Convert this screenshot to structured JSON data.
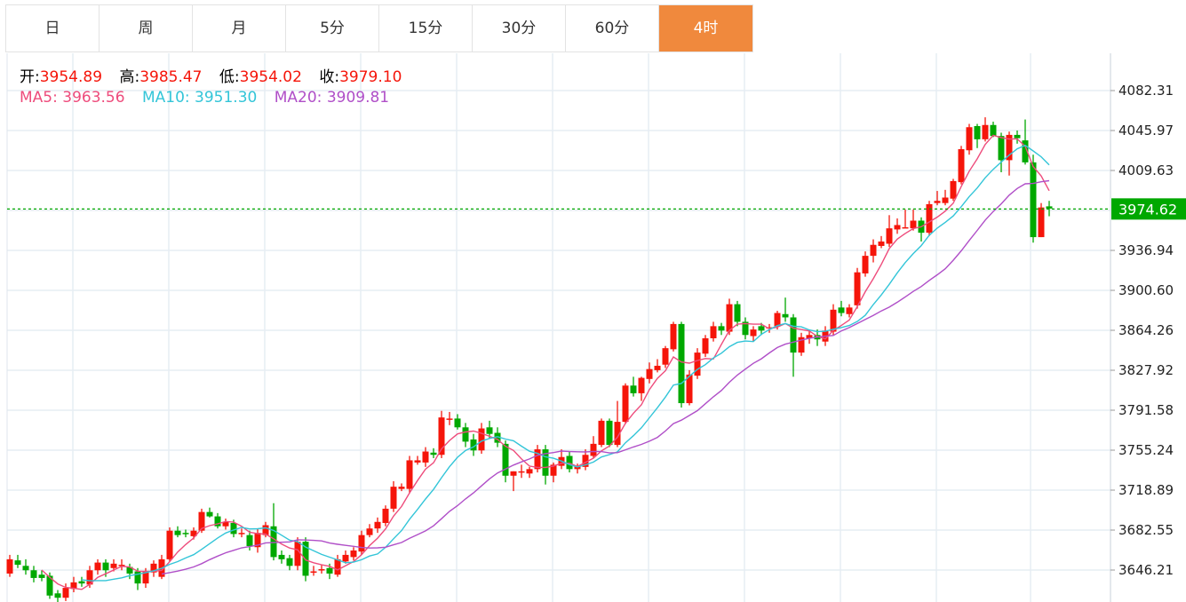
{
  "tabs": [
    {
      "label": "日"
    },
    {
      "label": "周"
    },
    {
      "label": "月"
    },
    {
      "label": "5分"
    },
    {
      "label": "15分"
    },
    {
      "label": "30分"
    },
    {
      "label": "60分"
    },
    {
      "label": "4时",
      "active": true
    }
  ],
  "info": {
    "open_label": "开:",
    "open": "3954.89",
    "high_label": "高:",
    "high": "3985.47",
    "low_label": "低:",
    "low": "3954.02",
    "close_label": "收:",
    "close": "3979.10",
    "ma5_label": "MA5:",
    "ma5": "3963.56",
    "ma10_label": "MA10:",
    "ma10": "3951.30",
    "ma20_label": "MA20:",
    "ma20": "3909.81"
  },
  "colors": {
    "up": "#f5150a",
    "down": "#00a800",
    "ma5": "#ee4c7c",
    "ma10": "#33c5d8",
    "ma20": "#b04fc8",
    "active_tab": "#f0893d",
    "current_price": "#00a800"
  },
  "chart_data": {
    "type": "candlestick",
    "yticks": [
      "4082.31",
      "4045.97",
      "4009.63",
      "3936.94",
      "3900.60",
      "3864.26",
      "3827.92",
      "3791.58",
      "3755.24",
      "3718.89",
      "3682.55",
      "3646.21"
    ],
    "ylim": [
      3620,
      4090
    ],
    "current_price": "3974.62",
    "grid": true,
    "ma_periods": [
      5,
      10,
      20
    ],
    "ohlc": [
      [
        3643,
        3660,
        3640,
        3656
      ],
      [
        3655,
        3660,
        3648,
        3651
      ],
      [
        3650,
        3656,
        3642,
        3646
      ],
      [
        3646,
        3650,
        3635,
        3639
      ],
      [
        3642,
        3646,
        3636,
        3639
      ],
      [
        3641,
        3644,
        3620,
        3623
      ],
      [
        3625,
        3628,
        3614,
        3621
      ],
      [
        3621,
        3634,
        3618,
        3630
      ],
      [
        3629,
        3640,
        3626,
        3635
      ],
      [
        3636,
        3640,
        3631,
        3634
      ],
      [
        3633,
        3650,
        3630,
        3646
      ],
      [
        3646,
        3656,
        3642,
        3653
      ],
      [
        3653,
        3656,
        3640,
        3646
      ],
      [
        3648,
        3656,
        3645,
        3652
      ],
      [
        3650,
        3656,
        3646,
        3651
      ],
      [
        3649,
        3652,
        3638,
        3643
      ],
      [
        3645,
        3648,
        3628,
        3634
      ],
      [
        3634,
        3648,
        3630,
        3645
      ],
      [
        3644,
        3655,
        3640,
        3652
      ],
      [
        3640,
        3660,
        3638,
        3656
      ],
      [
        3656,
        3685,
        3654,
        3682
      ],
      [
        3682,
        3686,
        3676,
        3678
      ],
      [
        3680,
        3683,
        3676,
        3679
      ],
      [
        3677,
        3685,
        3674,
        3682
      ],
      [
        3682,
        3702,
        3680,
        3699
      ],
      [
        3699,
        3703,
        3694,
        3695
      ],
      [
        3695,
        3698,
        3684,
        3686
      ],
      [
        3686,
        3693,
        3683,
        3690
      ],
      [
        3689,
        3692,
        3676,
        3679
      ],
      [
        3680,
        3684,
        3676,
        3680
      ],
      [
        3678,
        3682,
        3664,
        3668
      ],
      [
        3667,
        3684,
        3662,
        3680
      ],
      [
        3678,
        3690,
        3676,
        3687
      ],
      [
        3686,
        3707,
        3655,
        3658
      ],
      [
        3660,
        3664,
        3652,
        3656
      ],
      [
        3657,
        3660,
        3646,
        3650
      ],
      [
        3650,
        3676,
        3646,
        3672
      ],
      [
        3672,
        3676,
        3636,
        3641
      ],
      [
        3645,
        3650,
        3641,
        3645
      ],
      [
        3647,
        3651,
        3643,
        3647
      ],
      [
        3648,
        3652,
        3638,
        3643
      ],
      [
        3642,
        3660,
        3640,
        3656
      ],
      [
        3654,
        3664,
        3652,
        3660
      ],
      [
        3658,
        3667,
        3655,
        3664
      ],
      [
        3663,
        3682,
        3660,
        3678
      ],
      [
        3678,
        3688,
        3676,
        3684
      ],
      [
        3684,
        3694,
        3680,
        3690
      ],
      [
        3689,
        3705,
        3686,
        3702
      ],
      [
        3702,
        3727,
        3699,
        3722
      ],
      [
        3720,
        3725,
        3718,
        3722
      ],
      [
        3720,
        3750,
        3716,
        3746
      ],
      [
        3744,
        3750,
        3742,
        3746
      ],
      [
        3744,
        3758,
        3740,
        3754
      ],
      [
        3753,
        3757,
        3748,
        3751
      ],
      [
        3751,
        3791,
        3748,
        3785
      ],
      [
        3784,
        3790,
        3778,
        3784
      ],
      [
        3784,
        3788,
        3774,
        3776
      ],
      [
        3776,
        3780,
        3758,
        3763
      ],
      [
        3765,
        3770,
        3750,
        3755
      ],
      [
        3755,
        3780,
        3752,
        3775
      ],
      [
        3776,
        3782,
        3766,
        3770
      ],
      [
        3771,
        3776,
        3758,
        3762
      ],
      [
        3761,
        3764,
        3726,
        3732
      ],
      [
        3732,
        3736,
        3718,
        3736
      ],
      [
        3736,
        3742,
        3730,
        3736
      ],
      [
        3734,
        3740,
        3730,
        3738
      ],
      [
        3738,
        3760,
        3735,
        3756
      ],
      [
        3756,
        3760,
        3724,
        3732
      ],
      [
        3732,
        3744,
        3726,
        3742
      ],
      [
        3741,
        3756,
        3738,
        3749
      ],
      [
        3750,
        3754,
        3735,
        3738
      ],
      [
        3738,
        3743,
        3734,
        3741
      ],
      [
        3740,
        3756,
        3737,
        3751
      ],
      [
        3750,
        3768,
        3748,
        3761
      ],
      [
        3760,
        3784,
        3758,
        3782
      ],
      [
        3782,
        3784,
        3758,
        3760
      ],
      [
        3760,
        3800,
        3758,
        3781
      ],
      [
        3781,
        3816,
        3779,
        3814
      ],
      [
        3814,
        3822,
        3804,
        3807
      ],
      [
        3807,
        3822,
        3800,
        3821
      ],
      [
        3820,
        3835,
        3816,
        3829
      ],
      [
        3828,
        3838,
        3826,
        3832
      ],
      [
        3833,
        3850,
        3830,
        3848
      ],
      [
        3847,
        3872,
        3845,
        3870
      ],
      [
        3870,
        3872,
        3794,
        3798
      ],
      [
        3798,
        3828,
        3796,
        3824
      ],
      [
        3823,
        3848,
        3820,
        3844
      ],
      [
        3843,
        3860,
        3840,
        3857
      ],
      [
        3857,
        3872,
        3854,
        3868
      ],
      [
        3868,
        3871,
        3860,
        3864
      ],
      [
        3863,
        3893,
        3860,
        3888
      ],
      [
        3888,
        3891,
        3868,
        3872
      ],
      [
        3872,
        3876,
        3856,
        3860
      ],
      [
        3859,
        3868,
        3854,
        3865
      ],
      [
        3868,
        3871,
        3860,
        3864
      ],
      [
        3867,
        3870,
        3862,
        3867
      ],
      [
        3868,
        3882,
        3865,
        3880
      ],
      [
        3879,
        3894,
        3872,
        3876
      ],
      [
        3876,
        3879,
        3822,
        3844
      ],
      [
        3844,
        3862,
        3841,
        3858
      ],
      [
        3857,
        3864,
        3852,
        3860
      ],
      [
        3860,
        3865,
        3850,
        3856
      ],
      [
        3854,
        3868,
        3850,
        3864
      ],
      [
        3863,
        3888,
        3860,
        3883
      ],
      [
        3885,
        3891,
        3877,
        3880
      ],
      [
        3879,
        3888,
        3876,
        3885
      ],
      [
        3887,
        3921,
        3884,
        3917
      ],
      [
        3916,
        3936,
        3913,
        3932
      ],
      [
        3932,
        3947,
        3926,
        3942
      ],
      [
        3941,
        3950,
        3939,
        3945
      ],
      [
        3943,
        3969,
        3940,
        3957
      ],
      [
        3956,
        3966,
        3952,
        3960
      ],
      [
        3958,
        3974,
        3958,
        3958
      ],
      [
        3957,
        3974,
        3955,
        3964
      ],
      [
        3964,
        3967,
        3945,
        3953
      ],
      [
        3953,
        3982,
        3950,
        3979
      ],
      [
        3980,
        3991,
        3978,
        3982
      ],
      [
        3980,
        3992,
        3978,
        3985
      ],
      [
        3984,
        4002,
        3982,
        4000
      ],
      [
        3999,
        4032,
        3997,
        4029
      ],
      [
        4028,
        4052,
        4024,
        4049
      ],
      [
        4050,
        4052,
        4030,
        4038
      ],
      [
        4038,
        4058,
        4036,
        4051
      ],
      [
        4051,
        4054,
        4040,
        4041
      ],
      [
        4041,
        4044,
        4008,
        4019
      ],
      [
        4019,
        4045,
        4005,
        4042
      ],
      [
        4042,
        4046,
        4034,
        4039
      ],
      [
        4037,
        4056,
        4015,
        4017
      ],
      [
        4017,
        4024,
        3944,
        3949
      ],
      [
        3949,
        3980,
        3949,
        3976
      ],
      [
        3977,
        3982,
        3968,
        3975
      ]
    ]
  }
}
